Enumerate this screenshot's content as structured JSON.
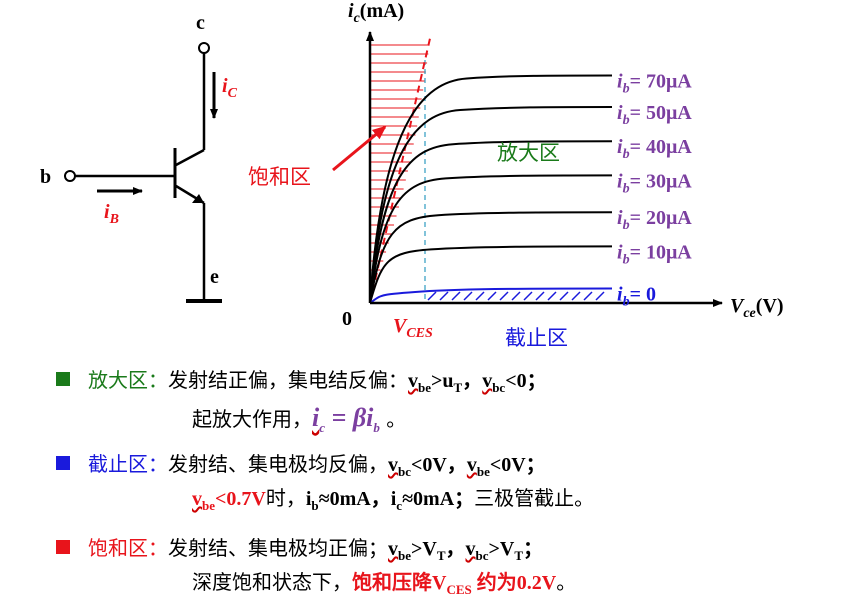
{
  "circuit": {
    "collector": "c",
    "base": "b",
    "emitter": "e",
    "ic_main": "i",
    "ic_sub": "C",
    "ib_main": "i",
    "ib_sub": "B"
  },
  "chart_data": {
    "type": "line",
    "title": "",
    "ylabel_main": "i",
    "ylabel_sub": "c",
    "ylabel_unit": "(mA)",
    "xlabel_main": "V",
    "xlabel_sub": "ce",
    "xlabel_unit": "(V)",
    "origin": "0",
    "vces_main": "V",
    "vces_sub": "CES",
    "series": [
      {
        "name_main": "i",
        "name_sub": "b",
        "name_val": "= 70μA",
        "sat_level": 0.85
      },
      {
        "name_main": "i",
        "name_sub": "b",
        "name_val": "= 50μA",
        "sat_level": 0.73
      },
      {
        "name_main": "i",
        "name_sub": "b",
        "name_val": "= 40μA",
        "sat_level": 0.6
      },
      {
        "name_main": "i",
        "name_sub": "b",
        "name_val": "= 30μA",
        "sat_level": 0.47
      },
      {
        "name_main": "i",
        "name_sub": "b",
        "name_val": "= 20μA",
        "sat_level": 0.33
      },
      {
        "name_main": "i",
        "name_sub": "b",
        "name_val": "= 10μA",
        "sat_level": 0.2
      },
      {
        "name_main": "i",
        "name_sub": "b",
        "name_val": "= 0",
        "sat_level": 0.04
      }
    ],
    "regions": {
      "amplify": "放大区",
      "saturation": "饱和区",
      "cutoff": "截止区"
    }
  },
  "notes": {
    "row1_label": "放大区：",
    "row1_text": "发射结正偏，集电结反偏：",
    "row1_f1": "v",
    "row1_f1_sub": "be",
    "row1_f1_rest": ">u",
    "row1_f1_sub2": "T",
    "row1_sep": "，",
    "row1_f2": "v",
    "row1_f2_sub": "bc",
    "row1_f2_rest": "<0；",
    "row2_text": "起放大作用，",
    "row2_eq_a": "i",
    "row2_eq_a_sub": "c",
    "row2_eq_mid": " = βi",
    "row2_eq_b_sub": "b",
    "row2_end": " 。",
    "row3_label": "截止区：",
    "row3_text": "发射结、集电极均反偏，",
    "row3_f1": "v",
    "row3_f1_sub": "bc",
    "row3_f1_rest": "<0V，",
    "row3_f2": "v",
    "row3_f2_sub": "be",
    "row3_f2_rest": "<0V；",
    "row4_red_a": "v",
    "row4_red_a_sub": "be",
    "row4_red_rest": "<0.7V",
    "row4_text1": "时，",
    "row4_f1": "i",
    "row4_f1_sub": "b",
    "row4_f1_rest": "≈0mA，",
    "row4_f2": "i",
    "row4_f2_sub": "c",
    "row4_f2_rest": "≈0mA；",
    "row4_text2": "三极管截止。",
    "row5_label": "饱和区：",
    "row5_text": "发射结、集电极均正偏；",
    "row5_f1": "v",
    "row5_f1_sub": "be",
    "row5_f1_rest": ">V",
    "row5_f1_sub2": "T",
    "row5_sep": "，",
    "row5_f2": "v",
    "row5_f2_sub": "bc",
    "row5_f2_rest": ">V",
    "row5_f2_sub2": "T",
    "row5_end": "；",
    "row6_text": "深度饱和状态下，",
    "row6_red": "饱和压降V",
    "row6_red_sub": "CES",
    "row6_red_rest": " 约为0.2V",
    "row6_end": "。"
  },
  "colors": {
    "amplify": "#1a7a1a",
    "cutoff": "#1a1adc",
    "saturation": "#e8141b",
    "curve_label": "#7b3fa0"
  }
}
